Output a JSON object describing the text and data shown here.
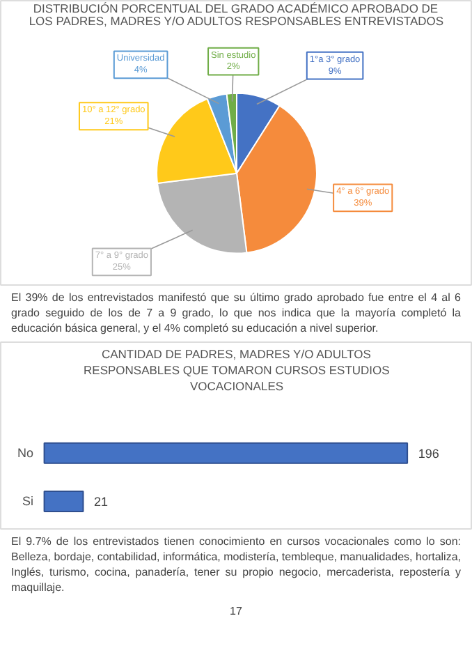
{
  "chart_data": [
    {
      "type": "pie",
      "title": "DISTRIBUCIÓN PORCENTUAL DEL GRADO ACADÉMICO APROBADO DE LOS PADRES, MADRES Y/O ADULTOS RESPONSABLES ENTREVISTADOS",
      "categories": [
        "1°a 3° grado",
        "4° a 6° grado",
        "7° a 9° grado",
        "10° a 12° grado",
        "Universidad",
        "Sin estudio"
      ],
      "values": [
        9,
        39,
        25,
        21,
        4,
        2
      ],
      "colors": [
        "#4472c4",
        "#f58b3c",
        "#b4b4b4",
        "#ffc91a",
        "#5b9bd5",
        "#70ad47"
      ],
      "value_labels": [
        "9%",
        "39%",
        "25%",
        "21%",
        "4%",
        "2%"
      ],
      "annotations": [
        "El 39% de los entrevistados manifestó que su último grado aprobado fue entre el 4 al 6 grado seguido de los de 7 a 9 grado, lo que nos indica que la mayoría completó la educación básica general, y el 4% completó su educación a nivel superior."
      ]
    },
    {
      "type": "bar",
      "orientation": "horizontal",
      "title": "CANTIDAD DE PADRES, MADRES Y/O ADULTOS RESPONSABLES QUE TOMARON CURSOS ESTUDIOS VOCACIONALES",
      "categories": [
        "No",
        "Si"
      ],
      "values": [
        196,
        21
      ],
      "color": "#4472c4",
      "data_labels": true,
      "annotations": [
        "El 9.7% de los entrevistados tienen conocimiento en cursos vocacionales como lo son: Belleza, bordaje, contabilidad, informática, modistería, tembleque, manualidades, hortaliza, Inglés, turismo, cocina, panadería, tener su propio negocio, mercaderista, repostería y maquillaje.",
        "17"
      ]
    }
  ]
}
